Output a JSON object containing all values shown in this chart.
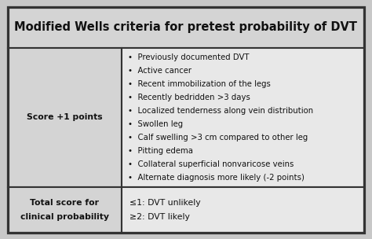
{
  "title": "Modified Wells criteria for pretest probability of DVT",
  "col1_row1": "Score +1 points",
  "col2_row1_items": [
    "Previously documented DVT",
    "Active cancer",
    "Recent immobilization of the legs",
    "Recently bedridden >3 days",
    "Localized tenderness along vein distribution",
    "Swollen leg",
    "Calf swelling >3 cm compared to other leg",
    "Pitting edema",
    "Collateral superficial nonvaricose veins",
    "Alternate diagnosis more likely (-2 points)"
  ],
  "col1_row2_line1": "Total score for",
  "col1_row2_line2": "clinical probability",
  "col2_row2_line1": "≤1: DVT unlikely",
  "col2_row2_line2": "≥2: DVT likely",
  "bg_color": "#c8c8c8",
  "header_bg": "#d4d4d4",
  "cell_bg": "#e8e8e8",
  "border_color": "#333333",
  "text_color": "#111111",
  "title_fontsize": 10.5,
  "body_fontsize": 7.8,
  "small_fontsize": 7.3
}
